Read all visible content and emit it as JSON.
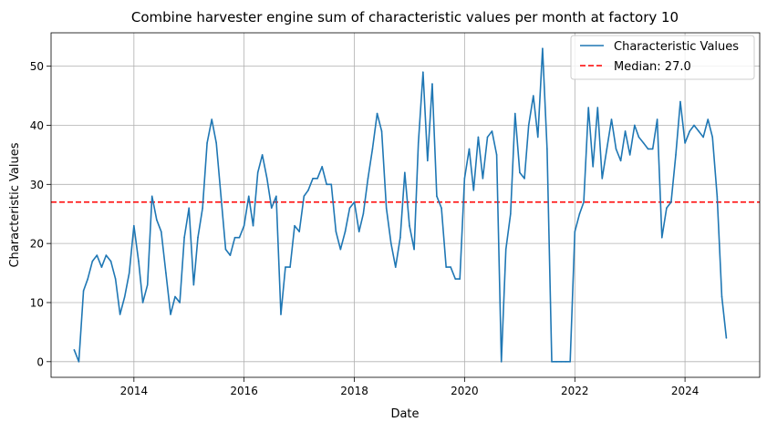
{
  "chart_data": {
    "type": "line",
    "title": "Combine harvester engine sum of characteristic values per month at factory 10",
    "xlabel": "Date",
    "ylabel": "Characteristic Values",
    "xlim": [
      "2012-07-01",
      "2025-05-10"
    ],
    "ylim": [
      -2.65,
      55.65
    ],
    "x_ticks": [
      "2014",
      "2016",
      "2018",
      "2020",
      "2022",
      "2024"
    ],
    "y_ticks": [
      0,
      10,
      20,
      30,
      40,
      50
    ],
    "grid": true,
    "legend_position": "top-right",
    "series": [
      {
        "name": "Characteristic Values",
        "color": "#1f77b4",
        "points": [
          [
            "2012-12-01",
            2
          ],
          [
            "2013-01-01",
            0
          ],
          [
            "2013-02-01",
            12
          ],
          [
            "2013-03-01",
            14
          ],
          [
            "2013-04-01",
            17
          ],
          [
            "2013-05-01",
            18
          ],
          [
            "2013-06-01",
            16
          ],
          [
            "2013-07-01",
            18
          ],
          [
            "2013-08-01",
            17
          ],
          [
            "2013-09-01",
            14
          ],
          [
            "2013-10-01",
            8
          ],
          [
            "2013-11-01",
            11
          ],
          [
            "2013-12-01",
            15
          ],
          [
            "2014-01-01",
            23
          ],
          [
            "2014-02-01",
            17
          ],
          [
            "2014-03-01",
            10
          ],
          [
            "2014-04-01",
            13
          ],
          [
            "2014-05-01",
            28
          ],
          [
            "2014-06-01",
            24
          ],
          [
            "2014-07-01",
            22
          ],
          [
            "2014-08-01",
            15
          ],
          [
            "2014-09-01",
            8
          ],
          [
            "2014-10-01",
            11
          ],
          [
            "2014-11-01",
            10
          ],
          [
            "2014-12-01",
            21
          ],
          [
            "2015-01-01",
            26
          ],
          [
            "2015-02-01",
            13
          ],
          [
            "2015-03-01",
            21
          ],
          [
            "2015-04-01",
            26
          ],
          [
            "2015-05-01",
            37
          ],
          [
            "2015-06-01",
            41
          ],
          [
            "2015-07-01",
            37
          ],
          [
            "2015-08-01",
            28
          ],
          [
            "2015-09-01",
            19
          ],
          [
            "2015-10-01",
            18
          ],
          [
            "2015-11-01",
            21
          ],
          [
            "2015-12-01",
            21
          ],
          [
            "2016-01-01",
            23
          ],
          [
            "2016-02-01",
            28
          ],
          [
            "2016-03-01",
            23
          ],
          [
            "2016-04-01",
            32
          ],
          [
            "2016-05-01",
            35
          ],
          [
            "2016-06-01",
            31
          ],
          [
            "2016-07-01",
            26
          ],
          [
            "2016-08-01",
            28
          ],
          [
            "2016-09-01",
            8
          ],
          [
            "2016-10-01",
            16
          ],
          [
            "2016-11-01",
            16
          ],
          [
            "2016-12-01",
            23
          ],
          [
            "2017-01-01",
            22
          ],
          [
            "2017-02-01",
            28
          ],
          [
            "2017-03-01",
            29
          ],
          [
            "2017-04-01",
            31
          ],
          [
            "2017-05-01",
            31
          ],
          [
            "2017-06-01",
            33
          ],
          [
            "2017-07-01",
            30
          ],
          [
            "2017-08-01",
            30
          ],
          [
            "2017-09-01",
            22
          ],
          [
            "2017-10-01",
            19
          ],
          [
            "2017-11-01",
            22
          ],
          [
            "2017-12-01",
            26
          ],
          [
            "2018-01-01",
            27
          ],
          [
            "2018-02-01",
            22
          ],
          [
            "2018-03-01",
            25
          ],
          [
            "2018-04-01",
            31
          ],
          [
            "2018-05-01",
            36
          ],
          [
            "2018-06-01",
            42
          ],
          [
            "2018-07-01",
            39
          ],
          [
            "2018-08-01",
            26
          ],
          [
            "2018-09-01",
            20
          ],
          [
            "2018-10-01",
            16
          ],
          [
            "2018-11-01",
            21
          ],
          [
            "2018-12-01",
            32
          ],
          [
            "2019-01-01",
            23
          ],
          [
            "2019-02-01",
            19
          ],
          [
            "2019-03-01",
            37
          ],
          [
            "2019-04-01",
            49
          ],
          [
            "2019-05-01",
            34
          ],
          [
            "2019-06-01",
            47
          ],
          [
            "2019-07-01",
            28
          ],
          [
            "2019-08-01",
            26
          ],
          [
            "2019-09-01",
            16
          ],
          [
            "2019-10-01",
            16
          ],
          [
            "2019-11-01",
            14
          ],
          [
            "2019-12-01",
            14
          ],
          [
            "2020-01-01",
            31
          ],
          [
            "2020-02-01",
            36
          ],
          [
            "2020-03-01",
            29
          ],
          [
            "2020-04-01",
            38
          ],
          [
            "2020-05-01",
            31
          ],
          [
            "2020-06-01",
            38
          ],
          [
            "2020-07-01",
            39
          ],
          [
            "2020-08-01",
            35
          ],
          [
            "2020-09-01",
            0
          ],
          [
            "2020-10-01",
            19
          ],
          [
            "2020-11-01",
            25
          ],
          [
            "2020-12-01",
            42
          ],
          [
            "2021-01-01",
            32
          ],
          [
            "2021-02-01",
            31
          ],
          [
            "2021-03-01",
            40
          ],
          [
            "2021-04-01",
            45
          ],
          [
            "2021-05-01",
            38
          ],
          [
            "2021-06-01",
            53
          ],
          [
            "2021-07-01",
            36
          ],
          [
            "2021-08-01",
            0
          ],
          [
            "2021-09-01",
            0
          ],
          [
            "2021-10-01",
            0
          ],
          [
            "2021-11-01",
            0
          ],
          [
            "2021-12-01",
            0
          ],
          [
            "2022-01-01",
            22
          ],
          [
            "2022-02-01",
            25
          ],
          [
            "2022-03-01",
            27
          ],
          [
            "2022-04-01",
            43
          ],
          [
            "2022-05-01",
            33
          ],
          [
            "2022-06-01",
            43
          ],
          [
            "2022-07-01",
            31
          ],
          [
            "2022-08-01",
            36
          ],
          [
            "2022-09-01",
            41
          ],
          [
            "2022-10-01",
            36
          ],
          [
            "2022-11-01",
            34
          ],
          [
            "2022-12-01",
            39
          ],
          [
            "2023-01-01",
            35
          ],
          [
            "2023-02-01",
            40
          ],
          [
            "2023-03-01",
            38
          ],
          [
            "2023-04-01",
            37
          ],
          [
            "2023-05-01",
            36
          ],
          [
            "2023-06-01",
            36
          ],
          [
            "2023-07-01",
            41
          ],
          [
            "2023-08-01",
            21
          ],
          [
            "2023-09-01",
            26
          ],
          [
            "2023-10-01",
            27
          ],
          [
            "2023-11-01",
            35
          ],
          [
            "2023-12-01",
            44
          ],
          [
            "2024-01-01",
            37
          ],
          [
            "2024-02-01",
            39
          ],
          [
            "2024-03-01",
            40
          ],
          [
            "2024-04-01",
            39
          ],
          [
            "2024-05-01",
            38
          ],
          [
            "2024-06-01",
            41
          ],
          [
            "2024-07-01",
            38
          ],
          [
            "2024-08-01",
            28
          ],
          [
            "2024-09-01",
            11
          ],
          [
            "2024-10-01",
            4
          ]
        ]
      }
    ],
    "median": {
      "label": "Median: 27.0",
      "value": 27,
      "color": "#ff0000"
    }
  }
}
